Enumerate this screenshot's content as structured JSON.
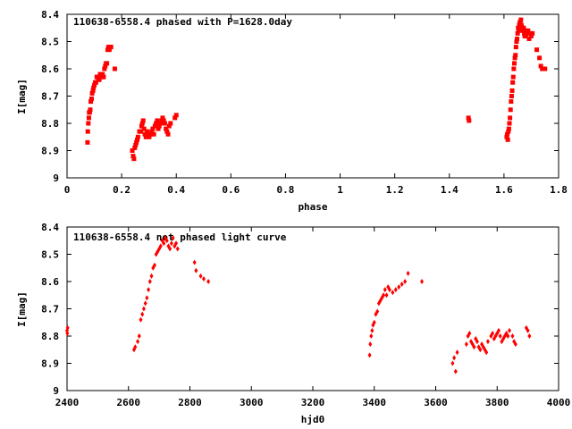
{
  "chart_data": [
    {
      "type": "scatter",
      "title": "110638-6558.4 phased with P=1628.0day",
      "xlabel": "phase",
      "ylabel": "I[mag]",
      "xlim": [
        0,
        1.8
      ],
      "ylim": [
        9,
        8.4
      ],
      "y_inverted": true,
      "grid": false,
      "x_ticks": [
        "0",
        "0.2",
        "0.4",
        "0.6",
        "0.8",
        "1",
        "1.2",
        "1.4",
        "1.6",
        "1.8"
      ],
      "y_ticks": [
        "8.4",
        "8.5",
        "8.6",
        "8.7",
        "8.8",
        "8.9",
        "9"
      ],
      "marker": "square",
      "color": "#ff0000",
      "series": [
        {
          "x": [
            0.075,
            0.076,
            0.078,
            0.08,
            0.081,
            0.083,
            0.085,
            0.087,
            0.09,
            0.092,
            0.095,
            0.097,
            0.1,
            0.103,
            0.106,
            0.109,
            0.112,
            0.115,
            0.118,
            0.121,
            0.124,
            0.127,
            0.13,
            0.134,
            0.137,
            0.14,
            0.143,
            0.146,
            0.149,
            0.152,
            0.155,
            0.158,
            0.161,
            0.175,
            0.239,
            0.242,
            0.245,
            0.248,
            0.251,
            0.254,
            0.257,
            0.26,
            0.265,
            0.27,
            0.273,
            0.276,
            0.279,
            0.282,
            0.285,
            0.289,
            0.293,
            0.297,
            0.301,
            0.305,
            0.31,
            0.314,
            0.318,
            0.322,
            0.326,
            0.33,
            0.334,
            0.338,
            0.342,
            0.346,
            0.35,
            0.354,
            0.358,
            0.362,
            0.366,
            0.37,
            0.374,
            0.379,
            0.395,
            0.4,
            1.47,
            1.472,
            1.61,
            1.612,
            1.614,
            1.616,
            1.618,
            1.62,
            1.622,
            1.624,
            1.626,
            1.628,
            1.63,
            1.632,
            1.634,
            1.636,
            1.638,
            1.64,
            1.642,
            1.644,
            1.646,
            1.648,
            1.65,
            1.652,
            1.654,
            1.656,
            1.658,
            1.66,
            1.662,
            1.664,
            1.666,
            1.668,
            1.67,
            1.672,
            1.674,
            1.676,
            1.678,
            1.68,
            1.684,
            1.688,
            1.692,
            1.696,
            1.7,
            1.704,
            1.72,
            1.73,
            1.735,
            1.74,
            1.745,
            1.75
          ],
          "y": [
            8.87,
            8.83,
            8.8,
            8.78,
            8.76,
            8.76,
            8.75,
            8.72,
            8.71,
            8.69,
            8.68,
            8.67,
            8.66,
            8.65,
            8.65,
            8.63,
            8.63,
            8.64,
            8.64,
            8.62,
            8.62,
            8.63,
            8.62,
            8.63,
            8.6,
            8.59,
            8.58,
            8.58,
            8.53,
            8.52,
            8.53,
            8.52,
            8.52,
            8.6,
            8.9,
            8.92,
            8.93,
            8.89,
            8.88,
            8.87,
            8.86,
            8.85,
            8.83,
            8.83,
            8.81,
            8.8,
            8.79,
            8.82,
            8.84,
            8.85,
            8.83,
            8.84,
            8.85,
            8.84,
            8.83,
            8.82,
            8.84,
            8.81,
            8.8,
            8.79,
            8.82,
            8.81,
            8.8,
            8.79,
            8.78,
            8.79,
            8.8,
            8.82,
            8.83,
            8.84,
            8.81,
            8.8,
            8.78,
            8.77,
            8.78,
            8.79,
            8.85,
            8.84,
            8.86,
            8.83,
            8.82,
            8.8,
            8.78,
            8.75,
            8.72,
            8.7,
            8.68,
            8.65,
            8.63,
            8.6,
            8.58,
            8.56,
            8.55,
            8.52,
            8.5,
            8.49,
            8.47,
            8.45,
            8.46,
            8.44,
            8.43,
            8.43,
            8.42,
            8.44,
            8.45,
            8.45,
            8.46,
            8.45,
            8.47,
            8.48,
            8.46,
            8.48,
            8.47,
            8.46,
            8.49,
            8.47,
            8.48,
            8.47,
            8.53,
            8.56,
            8.59,
            8.6,
            8.6,
            8.6
          ]
        }
      ]
    },
    {
      "type": "scatter",
      "title": "110638-6558.4 not phased light curve",
      "xlabel": "hjd0",
      "ylabel": "I[mag]",
      "xlim": [
        2400,
        4000
      ],
      "ylim": [
        9,
        8.4
      ],
      "y_inverted": true,
      "grid": false,
      "x_ticks": [
        "2400",
        "2600",
        "2800",
        "3000",
        "3200",
        "3400",
        "3600",
        "3800",
        "4000"
      ],
      "y_ticks": [
        "8.4",
        "8.5",
        "8.6",
        "8.7",
        "8.8",
        "8.9",
        "9"
      ],
      "marker": "diamond",
      "color": "#ff0000",
      "series": [
        {
          "x": [
            2400,
            2401,
            2402,
            2618,
            2622,
            2630,
            2635,
            2640,
            2645,
            2650,
            2655,
            2660,
            2665,
            2670,
            2675,
            2680,
            2685,
            2690,
            2695,
            2700,
            2705,
            2710,
            2715,
            2720,
            2725,
            2730,
            2735,
            2740,
            2745,
            2750,
            2755,
            2760,
            2815,
            2820,
            2835,
            2845,
            2860,
            3385,
            3387,
            3390,
            3393,
            3396,
            3400,
            3405,
            3410,
            3415,
            3420,
            3425,
            3430,
            3435,
            3440,
            3445,
            3450,
            3460,
            3470,
            3480,
            3490,
            3500,
            3510,
            3555,
            3655,
            3660,
            3665,
            3670,
            3700,
            3705,
            3710,
            3715,
            3720,
            3725,
            3730,
            3735,
            3740,
            3745,
            3750,
            3755,
            3760,
            3765,
            3770,
            3780,
            3785,
            3790,
            3795,
            3800,
            3805,
            3810,
            3815,
            3820,
            3825,
            3830,
            3835,
            3840,
            3850,
            3855,
            3860,
            3895,
            3900,
            3905
          ],
          "y": [
            8.78,
            8.79,
            8.77,
            8.85,
            8.84,
            8.82,
            8.8,
            8.74,
            8.72,
            8.7,
            8.68,
            8.66,
            8.63,
            8.6,
            8.58,
            8.55,
            8.54,
            8.5,
            8.49,
            8.48,
            8.47,
            8.45,
            8.46,
            8.44,
            8.45,
            8.47,
            8.48,
            8.46,
            8.44,
            8.47,
            8.46,
            8.48,
            8.53,
            8.56,
            8.58,
            8.59,
            8.6,
            8.87,
            8.83,
            8.8,
            8.78,
            8.76,
            8.75,
            8.72,
            8.71,
            8.68,
            8.67,
            8.66,
            8.65,
            8.63,
            8.65,
            8.62,
            8.63,
            8.64,
            8.63,
            8.62,
            8.61,
            8.6,
            8.57,
            8.6,
            8.9,
            8.88,
            8.93,
            8.86,
            8.83,
            8.8,
            8.79,
            8.82,
            8.83,
            8.84,
            8.81,
            8.82,
            8.84,
            8.85,
            8.83,
            8.84,
            8.85,
            8.86,
            8.82,
            8.8,
            8.79,
            8.81,
            8.8,
            8.79,
            8.78,
            8.8,
            8.82,
            8.81,
            8.8,
            8.79,
            8.8,
            8.78,
            8.8,
            8.82,
            8.83,
            8.77,
            8.78,
            8.8
          ]
        }
      ]
    }
  ]
}
